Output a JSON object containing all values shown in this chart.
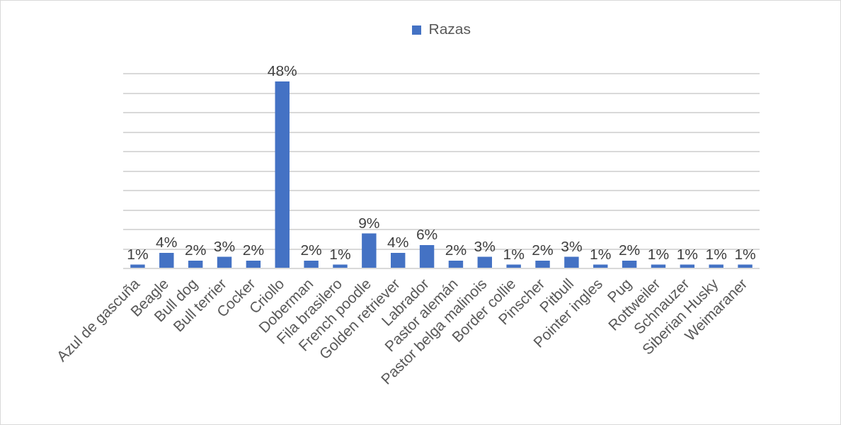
{
  "chart_data": {
    "type": "bar",
    "categories": [
      "Azul de gascuña",
      "Beagle",
      "Bull dog",
      "Bull terrier",
      "Cocker",
      "Criollo",
      "Doberman",
      "Fila brasilero",
      "French poodle",
      "Golden retriever",
      "Labrador",
      "Pastor alemán",
      "Pastor belga malinois",
      "Border collie",
      "Pinscher",
      "Pitbull",
      "Pointer ingles",
      "Pug",
      "Rottweiler",
      "Schnauzer",
      "Siberian Husky",
      "Weimaraner"
    ],
    "series": [
      {
        "name": "Razas",
        "color": "#4472c4",
        "values": [
          1,
          4,
          2,
          3,
          2,
          48,
          2,
          1,
          9,
          4,
          6,
          2,
          3,
          1,
          2,
          3,
          1,
          2,
          1,
          1,
          1,
          1
        ],
        "value_labels": [
          "1%",
          "4%",
          "2%",
          "3%",
          "2%",
          "48%",
          "2%",
          "1%",
          "9%",
          "4%",
          "6%",
          "2%",
          "3%",
          "1%",
          "2%",
          "3%",
          "1%",
          "2%",
          "1%",
          "1%",
          "1%",
          "1%"
        ]
      }
    ],
    "ylim": [
      0,
      50
    ],
    "yticks": [
      {
        "value": 0,
        "label": null
      },
      {
        "value": 5,
        "label": null
      },
      {
        "value": 10,
        "label": null
      },
      {
        "value": 15,
        "label": null
      },
      {
        "value": 20,
        "label": null
      },
      {
        "value": 25,
        "label": null
      },
      {
        "value": 30,
        "label": null
      },
      {
        "value": 35,
        "label": null
      },
      {
        "value": 40,
        "label": null
      },
      {
        "value": 45,
        "label": null
      },
      {
        "value": 50,
        "label": null
      }
    ],
    "grid": "y",
    "legend": "top",
    "tick_labels": "x"
  }
}
